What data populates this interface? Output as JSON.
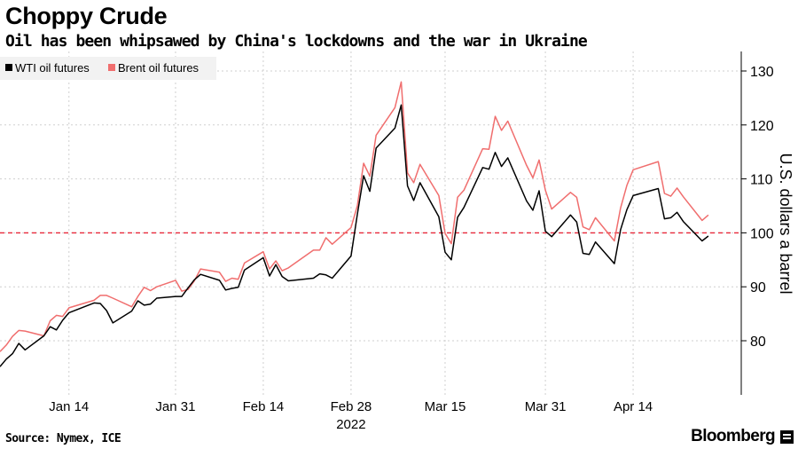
{
  "header": {
    "title": "Choppy Crude",
    "subtitle": "Oil has been whipsawed by China's lockdowns and the war in Ukraine"
  },
  "footer": {
    "source": "Source: Nymex, ICE",
    "brand": "Bloomberg"
  },
  "colors": {
    "wti": "#000000",
    "brent": "#f06e6e",
    "reference": "#e8283a",
    "grid": "#cfcfcf"
  },
  "chart_data": {
    "type": "line",
    "title": "Choppy Crude",
    "subtitle": "Oil has been whipsawed by China's lockdowns and the war in Ukraine",
    "xlabel": "",
    "ylabel": "U.S. dollars a barrel",
    "year_label": "2022",
    "y_axis_side": "right",
    "ylim": [
      70,
      132
    ],
    "y_ticks": [
      80,
      90,
      100,
      110,
      120,
      130
    ],
    "x_ticks": [
      {
        "date": "2022-01-14",
        "label": "Jan 14"
      },
      {
        "date": "2022-01-31",
        "label": "Jan 31"
      },
      {
        "date": "2022-02-14",
        "label": "Feb 14"
      },
      {
        "date": "2022-02-28",
        "label": "Feb 28"
      },
      {
        "date": "2022-03-15",
        "label": "Mar 15"
      },
      {
        "date": "2022-03-31",
        "label": "Mar 31"
      },
      {
        "date": "2022-04-14",
        "label": "Apr 14"
      }
    ],
    "reference_line": 100,
    "grid": true,
    "legend_position": "top-left",
    "x": [
      "2022-01-03",
      "2022-01-04",
      "2022-01-05",
      "2022-01-06",
      "2022-01-07",
      "2022-01-10",
      "2022-01-11",
      "2022-01-12",
      "2022-01-13",
      "2022-01-14",
      "2022-01-18",
      "2022-01-19",
      "2022-01-20",
      "2022-01-21",
      "2022-01-24",
      "2022-01-25",
      "2022-01-26",
      "2022-01-27",
      "2022-01-28",
      "2022-01-31",
      "2022-02-01",
      "2022-02-02",
      "2022-02-03",
      "2022-02-04",
      "2022-02-07",
      "2022-02-08",
      "2022-02-09",
      "2022-02-10",
      "2022-02-11",
      "2022-02-14",
      "2022-02-15",
      "2022-02-16",
      "2022-02-17",
      "2022-02-18",
      "2022-02-22",
      "2022-02-23",
      "2022-02-24",
      "2022-02-25",
      "2022-02-28",
      "2022-03-01",
      "2022-03-02",
      "2022-03-03",
      "2022-03-04",
      "2022-03-07",
      "2022-03-08",
      "2022-03-09",
      "2022-03-10",
      "2022-03-11",
      "2022-03-14",
      "2022-03-15",
      "2022-03-16",
      "2022-03-17",
      "2022-03-18",
      "2022-03-21",
      "2022-03-22",
      "2022-03-23",
      "2022-03-24",
      "2022-03-25",
      "2022-03-28",
      "2022-03-29",
      "2022-03-30",
      "2022-03-31",
      "2022-04-01",
      "2022-04-04",
      "2022-04-05",
      "2022-04-06",
      "2022-04-07",
      "2022-04-08",
      "2022-04-11",
      "2022-04-12",
      "2022-04-13",
      "2022-04-14",
      "2022-04-18",
      "2022-04-19",
      "2022-04-20",
      "2022-04-21",
      "2022-04-22",
      "2022-04-25",
      "2022-04-26"
    ],
    "series": [
      {
        "name": "WTI oil futures",
        "values": [
          75.2,
          76.6,
          77.6,
          79.5,
          78.3,
          80.9,
          82.6,
          82.0,
          83.8,
          85.2,
          87.0,
          86.9,
          85.6,
          83.3,
          85.5,
          87.4,
          86.6,
          86.8,
          87.9,
          88.2,
          88.2,
          89.8,
          91.3,
          92.3,
          91.2,
          89.4,
          89.7,
          89.9,
          93.1,
          95.4,
          92.0,
          94.1,
          91.9,
          91.1,
          91.6,
          92.4,
          92.2,
          91.6,
          95.7,
          103.4,
          110.6,
          107.7,
          115.7,
          119.4,
          123.7,
          108.7,
          106.0,
          109.3,
          103.0,
          96.4,
          95.0,
          102.9,
          104.7,
          112.1,
          111.8,
          114.9,
          112.3,
          113.9,
          105.9,
          104.2,
          107.8,
          100.3,
          99.3,
          103.3,
          102.0,
          96.2,
          96.0,
          98.3,
          94.3,
          100.6,
          104.3,
          106.9,
          108.2,
          102.6,
          102.8,
          103.8,
          102.1,
          98.5,
          99.4
        ]
      },
      {
        "name": "Brent oil futures",
        "values": [
          78.0,
          79.2,
          80.8,
          81.9,
          81.8,
          80.9,
          83.7,
          84.7,
          84.5,
          86.1,
          87.5,
          88.4,
          88.4,
          87.9,
          86.3,
          88.2,
          89.9,
          89.3,
          90.0,
          91.2,
          89.2,
          89.5,
          91.1,
          93.3,
          92.7,
          91.0,
          91.6,
          91.4,
          94.4,
          96.5,
          93.3,
          94.8,
          92.97,
          93.5,
          96.8,
          96.8,
          99.1,
          97.9,
          100.99,
          105.0,
          112.9,
          110.5,
          118.1,
          123.2,
          127.98,
          111.1,
          109.3,
          112.7,
          106.9,
          99.9,
          98.0,
          106.6,
          107.9,
          115.6,
          115.5,
          121.6,
          119.0,
          120.7,
          112.5,
          110.2,
          113.5,
          107.9,
          104.4,
          107.5,
          106.6,
          101.1,
          100.6,
          102.8,
          98.5,
          104.6,
          108.8,
          111.7,
          113.2,
          107.3,
          106.8,
          108.3,
          106.7,
          102.3,
          103.3
        ]
      }
    ]
  }
}
